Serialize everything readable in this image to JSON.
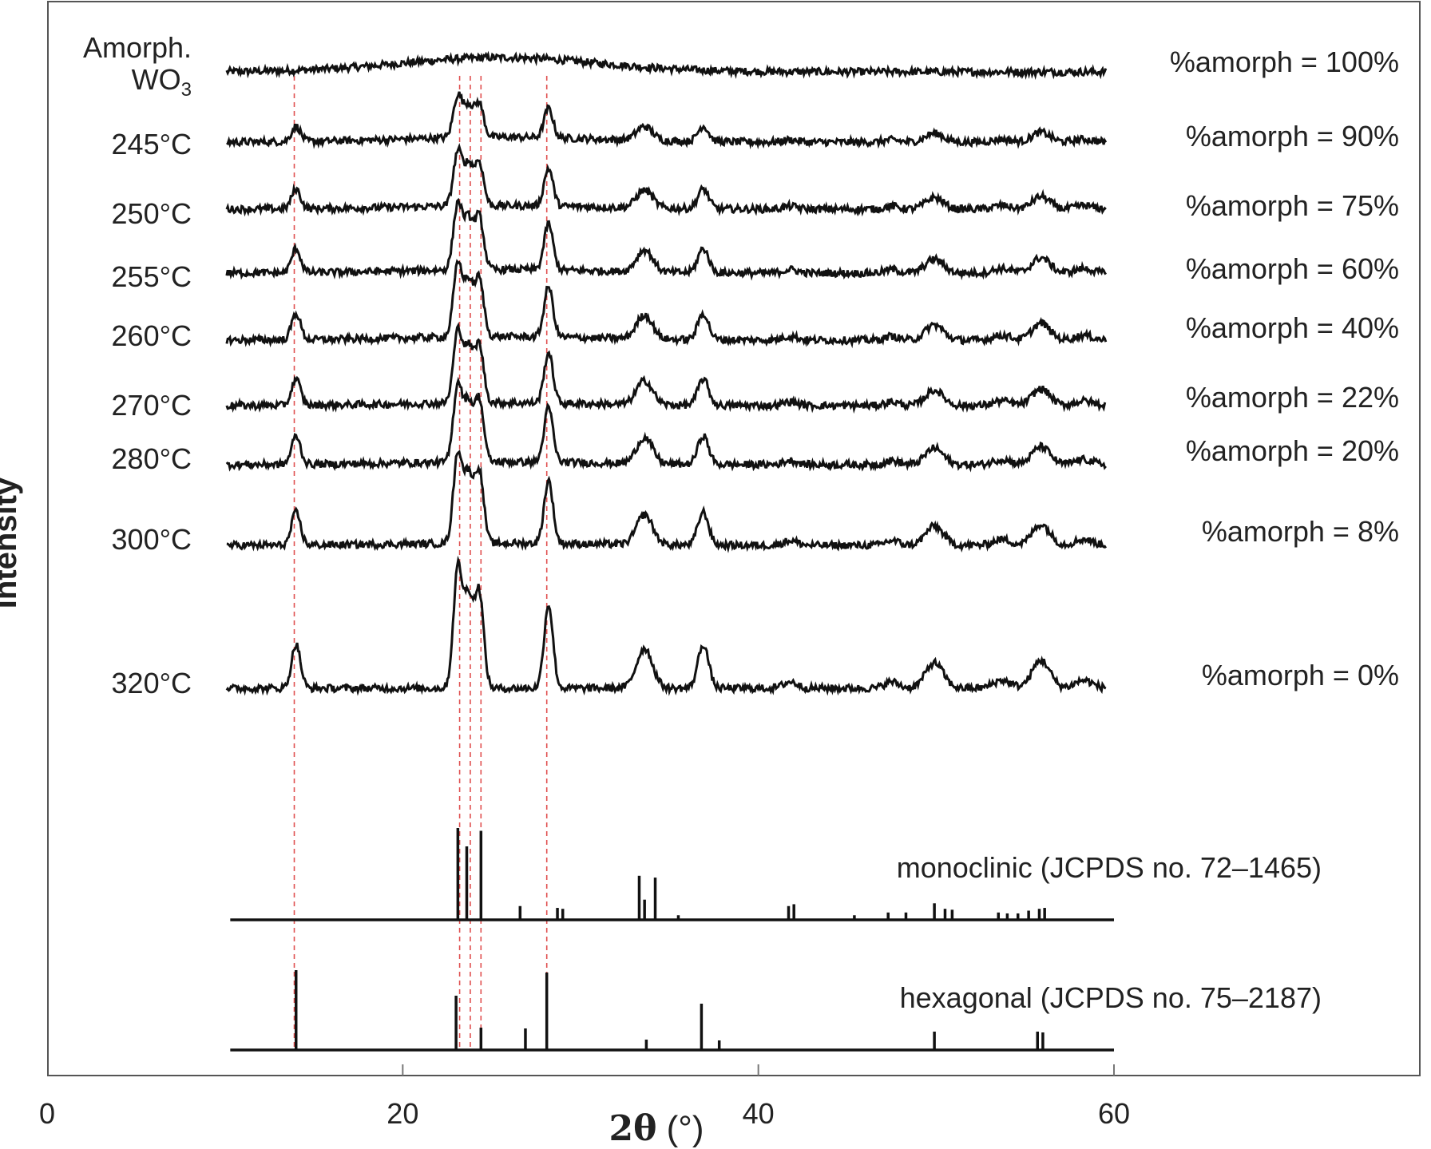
{
  "chart_data": {
    "type": "line",
    "title": "",
    "xlabel": "2θ (°)",
    "ylabel": "Intensity",
    "xlim": [
      0,
      60
    ],
    "xticks": [
      0,
      20,
      40,
      60
    ],
    "grid": false,
    "series": [
      {
        "name": "Amorph. WO3",
        "amorph_label": "%amorph = 100%",
        "peak_scale": 0.0,
        "broad": 1.0
      },
      {
        "name": "245°C",
        "amorph_label": "%amorph = 90%",
        "peak_scale": 0.35,
        "broad": 0.35
      },
      {
        "name": "250°C",
        "amorph_label": "%amorph = 75%",
        "peak_scale": 0.45,
        "broad": 0.25
      },
      {
        "name": "255°C",
        "amorph_label": "%amorph = 60%",
        "peak_scale": 0.55,
        "broad": 0.25
      },
      {
        "name": "260°C",
        "amorph_label": "%amorph = 40%",
        "peak_scale": 0.6,
        "broad": 0.25
      },
      {
        "name": "270°C",
        "amorph_label": "%amorph = 22%",
        "peak_scale": 0.6,
        "broad": 0.2
      },
      {
        "name": "280°C",
        "amorph_label": "%amorph = 20%",
        "peak_scale": 0.65,
        "broad": 0.2
      },
      {
        "name": "300°C",
        "amorph_label": "%amorph = 8%",
        "peak_scale": 0.75,
        "broad": 0.15
      },
      {
        "name": "320°C",
        "amorph_label": "%amorph = 0%",
        "peak_scale": 1.0,
        "broad": 0.0
      }
    ],
    "peaks_320C": [
      {
        "x": 14.0,
        "h": 55,
        "w": 0.25
      },
      {
        "x": 23.1,
        "h": 150,
        "w": 0.25
      },
      {
        "x": 23.7,
        "h": 110,
        "w": 0.25
      },
      {
        "x": 24.3,
        "h": 120,
        "w": 0.25
      },
      {
        "x": 28.2,
        "h": 105,
        "w": 0.25
      },
      {
        "x": 33.6,
        "h": 50,
        "w": 0.45
      },
      {
        "x": 36.9,
        "h": 55,
        "w": 0.3
      },
      {
        "x": 41.8,
        "h": 8,
        "w": 0.4
      },
      {
        "x": 47.5,
        "h": 8,
        "w": 0.4
      },
      {
        "x": 49.9,
        "h": 32,
        "w": 0.5
      },
      {
        "x": 53.7,
        "h": 10,
        "w": 0.5
      },
      {
        "x": 55.9,
        "h": 35,
        "w": 0.5
      },
      {
        "x": 58.3,
        "h": 10,
        "w": 0.5
      }
    ],
    "reference_patterns": [
      {
        "name": "monoclinic (JCPDS no. 72–1465)",
        "lines": [
          {
            "x": 23.1,
            "i": 100
          },
          {
            "x": 23.6,
            "i": 80
          },
          {
            "x": 24.4,
            "i": 97
          },
          {
            "x": 26.6,
            "i": 15
          },
          {
            "x": 28.7,
            "i": 13
          },
          {
            "x": 29.0,
            "i": 12
          },
          {
            "x": 33.3,
            "i": 48
          },
          {
            "x": 33.6,
            "i": 22
          },
          {
            "x": 34.2,
            "i": 46
          },
          {
            "x": 35.5,
            "i": 5
          },
          {
            "x": 41.7,
            "i": 15
          },
          {
            "x": 42.0,
            "i": 17
          },
          {
            "x": 45.4,
            "i": 5
          },
          {
            "x": 47.3,
            "i": 8
          },
          {
            "x": 48.3,
            "i": 8
          },
          {
            "x": 49.9,
            "i": 18
          },
          {
            "x": 50.5,
            "i": 12
          },
          {
            "x": 50.9,
            "i": 11
          },
          {
            "x": 53.5,
            "i": 8
          },
          {
            "x": 54.0,
            "i": 7
          },
          {
            "x": 54.6,
            "i": 7
          },
          {
            "x": 55.2,
            "i": 10
          },
          {
            "x": 55.8,
            "i": 12
          },
          {
            "x": 56.1,
            "i": 13
          }
        ]
      },
      {
        "name": "hexagonal (JCPDS no. 75–2187)",
        "lines": [
          {
            "x": 14.0,
            "i": 100
          },
          {
            "x": 23.0,
            "i": 68
          },
          {
            "x": 24.4,
            "i": 28
          },
          {
            "x": 26.9,
            "i": 27
          },
          {
            "x": 28.1,
            "i": 97
          },
          {
            "x": 33.7,
            "i": 13
          },
          {
            "x": 36.8,
            "i": 58
          },
          {
            "x": 37.8,
            "i": 12
          },
          {
            "x": 49.9,
            "i": 23
          },
          {
            "x": 55.7,
            "i": 23
          },
          {
            "x": 56.0,
            "i": 22
          }
        ]
      }
    ],
    "guide_lines_x": [
      13.9,
      23.2,
      23.8,
      24.4,
      28.1
    ]
  }
}
